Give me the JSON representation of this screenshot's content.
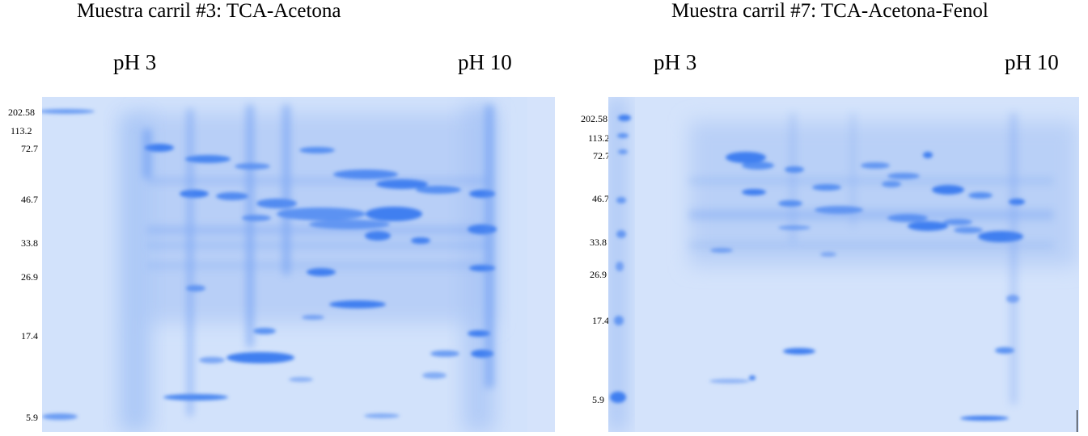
{
  "panels": [
    {
      "title": "Muestra carril #3: TCA-Acetona",
      "ph_left": "pH 3",
      "ph_right": "pH 10",
      "mw_markers": [
        "202.58",
        "113.2",
        "72.7",
        "46.7",
        "33.8",
        "26.9",
        "17.4",
        "5.9"
      ],
      "gel_color": "#3f7ff0"
    },
    {
      "title": "Muestra carril #7: TCA-Acetona-Fenol",
      "ph_left": "pH 3",
      "ph_right": "pH 10",
      "mw_markers": [
        "202.58",
        "113.2",
        "72.7",
        "46.7",
        "33.8",
        "26.9",
        "17.4",
        "5.9"
      ],
      "gel_color": "#3f7ff0"
    }
  ]
}
